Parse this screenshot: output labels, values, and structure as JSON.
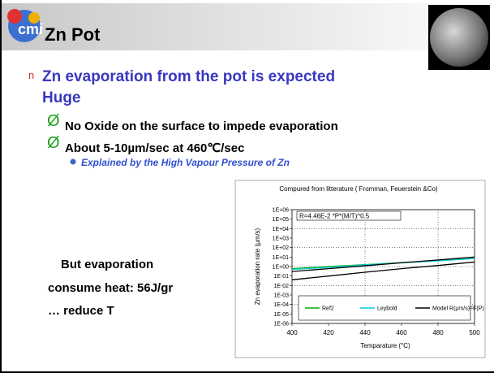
{
  "header": {
    "logo": "cmi",
    "title": "Zn Pot"
  },
  "bullet": {
    "marker": "n",
    "lines": [
      "Zn evaporation from the pot is expected",
      "Huge"
    ]
  },
  "sub_marker": "Ø",
  "sub_bullets": [
    "No Oxide on the surface to impede evaporation",
    "About 5-10µm/sec at 460℃/sec"
  ],
  "detail": "Explained by the High Vapour Pressure of Zn",
  "left_text": [
    "But evaporation",
    "consume heat: 56J/gr",
    "… reduce T"
  ],
  "chart_data": {
    "type": "line",
    "title": "Compured from litterature ( Fromman, Feuerstein &Co)",
    "x_label": "Temparature (°C)",
    "y_label": "Zn evaporation rate (µm/s)",
    "annotation": "R=4.46E-2 *P*(M/T)^0.5",
    "x": [
      400,
      420,
      440,
      460,
      480,
      500
    ],
    "series": [
      {
        "name": "Ref2",
        "color": "#00b000",
        "values": [
          0.6,
          1,
          1.6,
          2.6,
          4.5,
          7
        ]
      },
      {
        "name": "Leybold",
        "color": "#00c8e0",
        "values": [
          0.5,
          0.8,
          1.5,
          2.5,
          4,
          7
        ]
      },
      {
        "name": "Model R(µm/s)=F(P)",
        "color": "#000000",
        "values": [
          0.3,
          0.6,
          1.2,
          2.5,
          5,
          10
        ]
      },
      {
        "color": "#000000",
        "values": [
          0.04,
          0.1,
          0.25,
          0.6,
          1.3,
          3
        ]
      }
    ],
    "xlim": [
      400,
      500
    ],
    "xticks": [
      400,
      420,
      440,
      460,
      480,
      500
    ],
    "ylim": [
      1e-06,
      1000000
    ],
    "log_y": true,
    "grid": true,
    "yticks": [
      {
        "value": 1e-06,
        "label": "1E-06"
      },
      {
        "value": 1e-05,
        "label": "1E-05"
      },
      {
        "value": 0.0001,
        "label": "1E-04"
      },
      {
        "value": 0.001,
        "label": "1E-03"
      },
      {
        "value": 0.01,
        "label": "1E-02"
      },
      {
        "value": 0.1,
        "label": "1E-01"
      },
      {
        "value": 1,
        "label": "1E+00"
      },
      {
        "value": 10,
        "label": "1E+01"
      },
      {
        "value": 100,
        "label": "1E+02"
      },
      {
        "value": 1000,
        "label": "1E+03"
      },
      {
        "value": 10000,
        "label": "1E+04"
      },
      {
        "value": 100000,
        "label": "1E+05"
      },
      {
        "value": 1000000,
        "label": "1E+06"
      }
    ]
  }
}
